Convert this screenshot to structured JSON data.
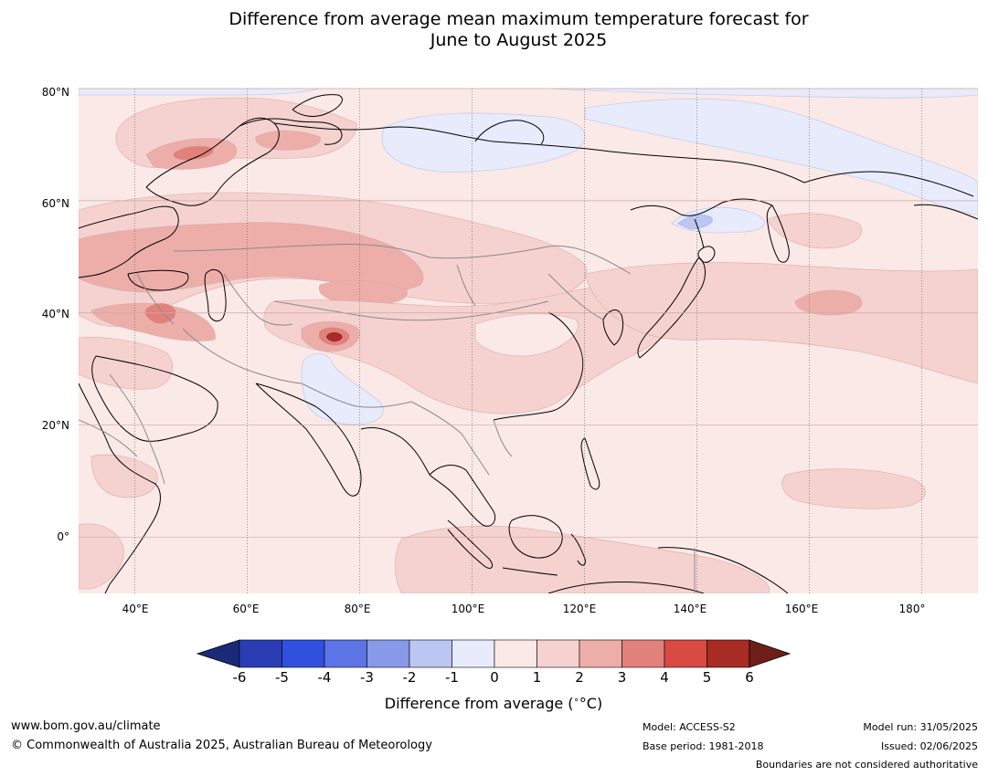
{
  "title": {
    "line1": "Difference from average mean maximum temperature forecast for",
    "line2": "June to August 2025"
  },
  "map": {
    "latitude_labels": [
      "80°N",
      "60°N",
      "40°N",
      "20°N",
      "0°"
    ],
    "longitude_labels": [
      "40°E",
      "60°E",
      "80°E",
      "100°E",
      "120°E",
      "140°E",
      "160°E",
      "180°"
    ],
    "lat_range": [
      -10,
      80
    ],
    "lon_range": [
      30,
      190
    ],
    "background_category": "0 to 1",
    "anomaly_regions": [
      {
        "area": "Scandinavia and northern Europe",
        "range": "1 to 2"
      },
      {
        "area": "Kola Peninsula",
        "range": "2 to 3"
      },
      {
        "area": "Eastern Europe to Central Asia and Mongolia",
        "range": "1 to 2"
      },
      {
        "area": "Caucasus",
        "range": "2 to 3"
      },
      {
        "area": "Western Himalaya / Karakoram",
        "range": "3 to 5"
      },
      {
        "area": "China",
        "range": "1 to 2"
      },
      {
        "area": "Siberian Arctic coast",
        "range": "-1 to 0"
      },
      {
        "area": "Pakistan and north-west India",
        "range": "-1 to 0"
      },
      {
        "area": "Sea of Okhotsk",
        "range": "-2 to -1"
      },
      {
        "area": "North Pacific near 40°N",
        "range": "1 to 2"
      },
      {
        "area": "Indonesia and western Pacific",
        "range": "1 to 2"
      }
    ]
  },
  "colorbar": {
    "labels": [
      "-6",
      "-5",
      "-4",
      "-3",
      "-2",
      "-1",
      "0",
      "1",
      "2",
      "3",
      "4",
      "5",
      "6"
    ],
    "colors": [
      "#1a2a78",
      "#2a3db4",
      "#3150e0",
      "#5d74e6",
      "#8899ea",
      "#bcc6f2",
      "#e7ebfb",
      "#fbe9e7",
      "#f5d2d0",
      "#edaeaa",
      "#e2807c",
      "#d84a42",
      "#a82b24",
      "#6e1f1a"
    ],
    "title": "Difference from average (",
    "title_unit": "°C)"
  },
  "footer": {
    "website": "www.bom.gov.au/climate",
    "copyright": "© Commonwealth of Australia 2025, Australian Bureau of Meteorology",
    "model": "Model: ACCESS-S2",
    "base_period": "Base period: 1981-2018",
    "model_run": "Model run: 31/05/2025",
    "issued": "Issued: 02/06/2025",
    "disclaimer": "Boundaries are not considered authoritative"
  }
}
